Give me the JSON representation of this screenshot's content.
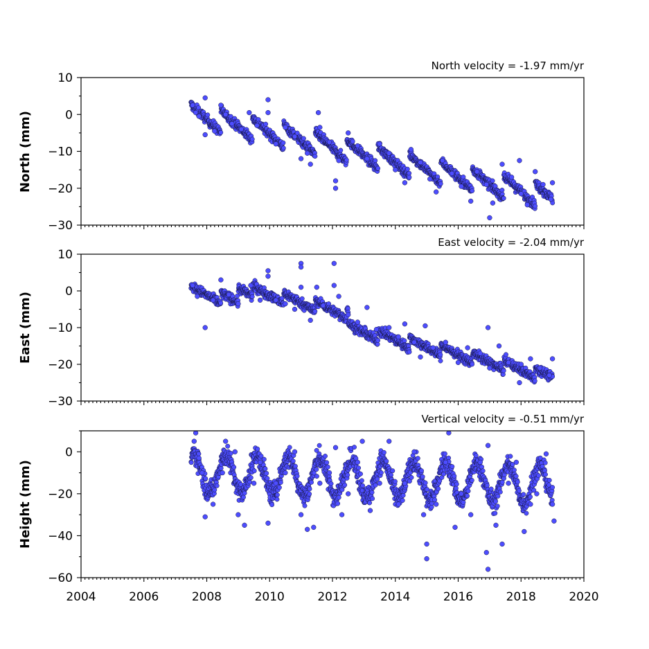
{
  "colors": {
    "marker_fill": "#4d4dff",
    "marker_edge": "#151540",
    "axes": "#000000"
  },
  "chart_data": [
    {
      "type": "scatter",
      "title": "North velocity = -1.97 mm/yr",
      "xlabel": "",
      "ylabel": "North (mm)",
      "xlim": [
        2004,
        2020
      ],
      "ylim": [
        -30,
        10
      ],
      "yticks": [
        10,
        0,
        -10,
        -20,
        -30
      ],
      "ytick_labels": [
        "10",
        "0",
        "−10",
        "−20",
        "−30"
      ],
      "x_range_of_data": [
        2007.5,
        2019.0
      ],
      "series": [
        {
          "values": [
            {
              "x": 2007.55,
              "y": 2.5
            },
            {
              "x": 2007.65,
              "y": 0.5
            },
            {
              "x": 2007.75,
              "y": -0.5
            },
            {
              "x": 2007.95,
              "y": 4.5
            },
            {
              "x": 2007.95,
              "y": -5.5
            },
            {
              "x": 2008.25,
              "y": -4.5
            },
            {
              "x": 2008.45,
              "y": 2.5
            },
            {
              "x": 2008.6,
              "y": 0.0
            },
            {
              "x": 2008.8,
              "y": -2.5
            },
            {
              "x": 2009.1,
              "y": -4.0
            },
            {
              "x": 2009.35,
              "y": 0.5
            },
            {
              "x": 2009.6,
              "y": -3.0
            },
            {
              "x": 2009.95,
              "y": 4.0
            },
            {
              "x": 2009.95,
              "y": 0.5
            },
            {
              "x": 2010.2,
              "y": -8.0
            },
            {
              "x": 2010.5,
              "y": -3.5
            },
            {
              "x": 2010.8,
              "y": -6.0
            },
            {
              "x": 2011.0,
              "y": -12.0
            },
            {
              "x": 2011.2,
              "y": -10.5
            },
            {
              "x": 2011.3,
              "y": -13.5
            },
            {
              "x": 2011.55,
              "y": 0.5
            },
            {
              "x": 2011.6,
              "y": -3.5
            },
            {
              "x": 2011.9,
              "y": -7.5
            },
            {
              "x": 2012.1,
              "y": -18.0
            },
            {
              "x": 2012.1,
              "y": -20.0
            },
            {
              "x": 2012.2,
              "y": -12.5
            },
            {
              "x": 2012.5,
              "y": -5.0
            },
            {
              "x": 2012.8,
              "y": -8.5
            },
            {
              "x": 2013.1,
              "y": -12.0
            },
            {
              "x": 2013.5,
              "y": -8.0
            },
            {
              "x": 2013.8,
              "y": -10.5
            },
            {
              "x": 2014.0,
              "y": -15.0
            },
            {
              "x": 2014.3,
              "y": -18.5
            },
            {
              "x": 2014.5,
              "y": -9.5
            },
            {
              "x": 2014.8,
              "y": -13.0
            },
            {
              "x": 2015.1,
              "y": -17.5
            },
            {
              "x": 2015.3,
              "y": -21.0
            },
            {
              "x": 2015.5,
              "y": -12.5
            },
            {
              "x": 2015.8,
              "y": -16.0
            },
            {
              "x": 2016.1,
              "y": -19.5
            },
            {
              "x": 2016.4,
              "y": -23.5
            },
            {
              "x": 2016.6,
              "y": -15.5
            },
            {
              "x": 2016.9,
              "y": -19.0
            },
            {
              "x": 2017.0,
              "y": -28.0
            },
            {
              "x": 2017.1,
              "y": -24.0
            },
            {
              "x": 2017.4,
              "y": -13.5
            },
            {
              "x": 2017.7,
              "y": -17.0
            },
            {
              "x": 2017.95,
              "y": -12.5
            },
            {
              "x": 2018.0,
              "y": -21.5
            },
            {
              "x": 2018.2,
              "y": -24.5
            },
            {
              "x": 2018.45,
              "y": -15.5
            },
            {
              "x": 2018.7,
              "y": -19.0
            },
            {
              "x": 2018.95,
              "y": -23.0
            },
            {
              "x": 2019.0,
              "y": -18.5
            }
          ]
        }
      ]
    },
    {
      "type": "scatter",
      "title": "East velocity = -2.04 mm/yr",
      "xlabel": "",
      "ylabel": "East (mm)",
      "xlim": [
        2004,
        2020
      ],
      "ylim": [
        -30,
        10
      ],
      "yticks": [
        10,
        0,
        -10,
        -20,
        -30
      ],
      "ytick_labels": [
        "10",
        "0",
        "−10",
        "−20",
        "−30"
      ],
      "x_range_of_data": [
        2007.5,
        2019.0
      ],
      "series": [
        {
          "values": [
            {
              "x": 2007.55,
              "y": 1.5
            },
            {
              "x": 2007.7,
              "y": -1.5
            },
            {
              "x": 2007.95,
              "y": -10.0
            },
            {
              "x": 2008.2,
              "y": -2.5
            },
            {
              "x": 2008.45,
              "y": 3.0
            },
            {
              "x": 2008.7,
              "y": -1.0
            },
            {
              "x": 2009.0,
              "y": -3.5
            },
            {
              "x": 2009.4,
              "y": 1.5
            },
            {
              "x": 2009.7,
              "y": -2.5
            },
            {
              "x": 2009.95,
              "y": 5.5
            },
            {
              "x": 2009.95,
              "y": 4.0
            },
            {
              "x": 2010.2,
              "y": -2.5
            },
            {
              "x": 2010.5,
              "y": -3.5
            },
            {
              "x": 2010.8,
              "y": -5.0
            },
            {
              "x": 2011.0,
              "y": 7.5
            },
            {
              "x": 2011.0,
              "y": 6.5
            },
            {
              "x": 2011.0,
              "y": 1.0
            },
            {
              "x": 2011.3,
              "y": -8.0
            },
            {
              "x": 2011.5,
              "y": 1.0
            },
            {
              "x": 2011.7,
              "y": -4.0
            },
            {
              "x": 2012.05,
              "y": 7.5
            },
            {
              "x": 2012.05,
              "y": 1.5
            },
            {
              "x": 2012.2,
              "y": -1.5
            },
            {
              "x": 2012.5,
              "y": -6.5
            },
            {
              "x": 2012.8,
              "y": -8.5
            },
            {
              "x": 2013.1,
              "y": -4.5
            },
            {
              "x": 2013.4,
              "y": -10.5
            },
            {
              "x": 2013.8,
              "y": -10.0
            },
            {
              "x": 2014.1,
              "y": -12.5
            },
            {
              "x": 2014.3,
              "y": -9.0
            },
            {
              "x": 2014.6,
              "y": -14.0
            },
            {
              "x": 2014.8,
              "y": -18.0
            },
            {
              "x": 2014.95,
              "y": -9.5
            },
            {
              "x": 2015.2,
              "y": -15.5
            },
            {
              "x": 2015.6,
              "y": -14.0
            },
            {
              "x": 2016.0,
              "y": -19.5
            },
            {
              "x": 2016.3,
              "y": -15.5
            },
            {
              "x": 2016.7,
              "y": -17.0
            },
            {
              "x": 2016.95,
              "y": -10.0
            },
            {
              "x": 2017.0,
              "y": -21.0
            },
            {
              "x": 2017.3,
              "y": -15.0
            },
            {
              "x": 2017.6,
              "y": -19.5
            },
            {
              "x": 2017.95,
              "y": -25.0
            },
            {
              "x": 2018.0,
              "y": -20.0
            },
            {
              "x": 2018.3,
              "y": -18.5
            },
            {
              "x": 2018.6,
              "y": -21.0
            },
            {
              "x": 2018.9,
              "y": -23.0
            },
            {
              "x": 2019.0,
              "y": -18.5
            }
          ]
        }
      ]
    },
    {
      "type": "scatter",
      "title": "Vertical velocity = -0.51 mm/yr",
      "xlabel": "",
      "ylabel": "Height (mm)",
      "xlim": [
        2004,
        2020
      ],
      "ylim": [
        -60,
        10
      ],
      "yticks": [
        0,
        -20,
        -40,
        -60
      ],
      "ytick_labels": [
        "0",
        "−20",
        "−40",
        "−60"
      ],
      "xticks": [
        2004,
        2006,
        2008,
        2010,
        2012,
        2014,
        2016,
        2018,
        2020
      ],
      "xtick_labels": [
        "2004",
        "2006",
        "2008",
        "2010",
        "2012",
        "2014",
        "2016",
        "2018",
        "2020"
      ],
      "x_range_of_data": [
        2007.5,
        2019.0
      ],
      "series": [
        {
          "values": [
            {
              "x": 2007.6,
              "y": 5.0
            },
            {
              "x": 2007.65,
              "y": 9.0
            },
            {
              "x": 2007.75,
              "y": -3.0
            },
            {
              "x": 2007.85,
              "y": -10.0
            },
            {
              "x": 2007.95,
              "y": -31.0
            },
            {
              "x": 2008.2,
              "y": -25.0
            },
            {
              "x": 2008.5,
              "y": -10.0
            },
            {
              "x": 2008.6,
              "y": 5.0
            },
            {
              "x": 2008.9,
              "y": 0.0
            },
            {
              "x": 2009.0,
              "y": -30.0
            },
            {
              "x": 2009.2,
              "y": -35.0
            },
            {
              "x": 2009.5,
              "y": -15.0
            },
            {
              "x": 2009.7,
              "y": -5.0
            },
            {
              "x": 2009.95,
              "y": -34.0
            },
            {
              "x": 2010.2,
              "y": -15.0
            },
            {
              "x": 2010.5,
              "y": -10.0
            },
            {
              "x": 2010.8,
              "y": 0.0
            },
            {
              "x": 2011.0,
              "y": -30.0
            },
            {
              "x": 2011.2,
              "y": -37.0
            },
            {
              "x": 2011.4,
              "y": -36.0
            },
            {
              "x": 2011.6,
              "y": -15.0
            },
            {
              "x": 2011.9,
              "y": -10.0
            },
            {
              "x": 2012.1,
              "y": 2.0
            },
            {
              "x": 2012.3,
              "y": -30.0
            },
            {
              "x": 2012.5,
              "y": -20.0
            },
            {
              "x": 2012.8,
              "y": -5.0
            },
            {
              "x": 2012.95,
              "y": 5.0
            },
            {
              "x": 2013.2,
              "y": -28.0
            },
            {
              "x": 2013.5,
              "y": -15.0
            },
            {
              "x": 2013.8,
              "y": 5.0
            },
            {
              "x": 2014.1,
              "y": -25.0
            },
            {
              "x": 2014.3,
              "y": -15.0
            },
            {
              "x": 2014.6,
              "y": 0.0
            },
            {
              "x": 2014.9,
              "y": -30.0
            },
            {
              "x": 2015.0,
              "y": -44.0
            },
            {
              "x": 2015.0,
              "y": -51.0
            },
            {
              "x": 2015.3,
              "y": -25.0
            },
            {
              "x": 2015.6,
              "y": -5.0
            },
            {
              "x": 2015.7,
              "y": 9.0
            },
            {
              "x": 2015.9,
              "y": -36.0
            },
            {
              "x": 2016.1,
              "y": -20.0
            },
            {
              "x": 2016.4,
              "y": -30.0
            },
            {
              "x": 2016.7,
              "y": -5.0
            },
            {
              "x": 2016.9,
              "y": -48.0
            },
            {
              "x": 2016.95,
              "y": -56.0
            },
            {
              "x": 2016.95,
              "y": 3.0
            },
            {
              "x": 2017.2,
              "y": -35.0
            },
            {
              "x": 2017.4,
              "y": -44.0
            },
            {
              "x": 2017.6,
              "y": -15.0
            },
            {
              "x": 2017.85,
              "y": -5.0
            },
            {
              "x": 2018.1,
              "y": -38.0
            },
            {
              "x": 2018.3,
              "y": -25.0
            },
            {
              "x": 2018.5,
              "y": -20.0
            },
            {
              "x": 2018.8,
              "y": -1.0
            },
            {
              "x": 2019.0,
              "y": -25.0
            },
            {
              "x": 2019.05,
              "y": -33.0
            }
          ]
        }
      ]
    }
  ]
}
